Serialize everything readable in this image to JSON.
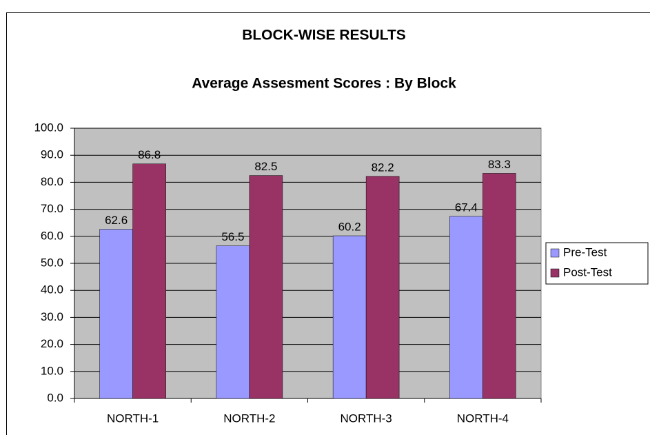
{
  "chart_data": {
    "type": "bar",
    "title": "BLOCK-WISE RESULTS",
    "subtitle": "Average Assesment Scores : By Block",
    "categories": [
      "NORTH-1",
      "NORTH-2",
      "NORTH-3",
      "NORTH-4"
    ],
    "series": [
      {
        "name": "Pre-Test",
        "color": "#9999ff",
        "values": [
          62.6,
          56.5,
          60.2,
          67.4
        ]
      },
      {
        "name": "Post-Test",
        "color": "#993366",
        "values": [
          86.8,
          82.5,
          82.2,
          83.3
        ]
      }
    ],
    "ylim": [
      0,
      100
    ],
    "yticks": [
      {
        "value": 0,
        "label": "0.0"
      },
      {
        "value": 10,
        "label": "10.0"
      },
      {
        "value": 20,
        "label": "20.0"
      },
      {
        "value": 30,
        "label": "30.0"
      },
      {
        "value": 40,
        "label": "40.0"
      },
      {
        "value": 50,
        "label": "50.0"
      },
      {
        "value": 60,
        "label": "60.0"
      },
      {
        "value": 70,
        "label": "70.0"
      },
      {
        "value": 80,
        "label": "80.0"
      },
      {
        "value": 90,
        "label": "90.0"
      },
      {
        "value": 100,
        "label": "100.0"
      }
    ],
    "grid": true,
    "legend": "right",
    "plot_background": "#c0c0c0"
  }
}
